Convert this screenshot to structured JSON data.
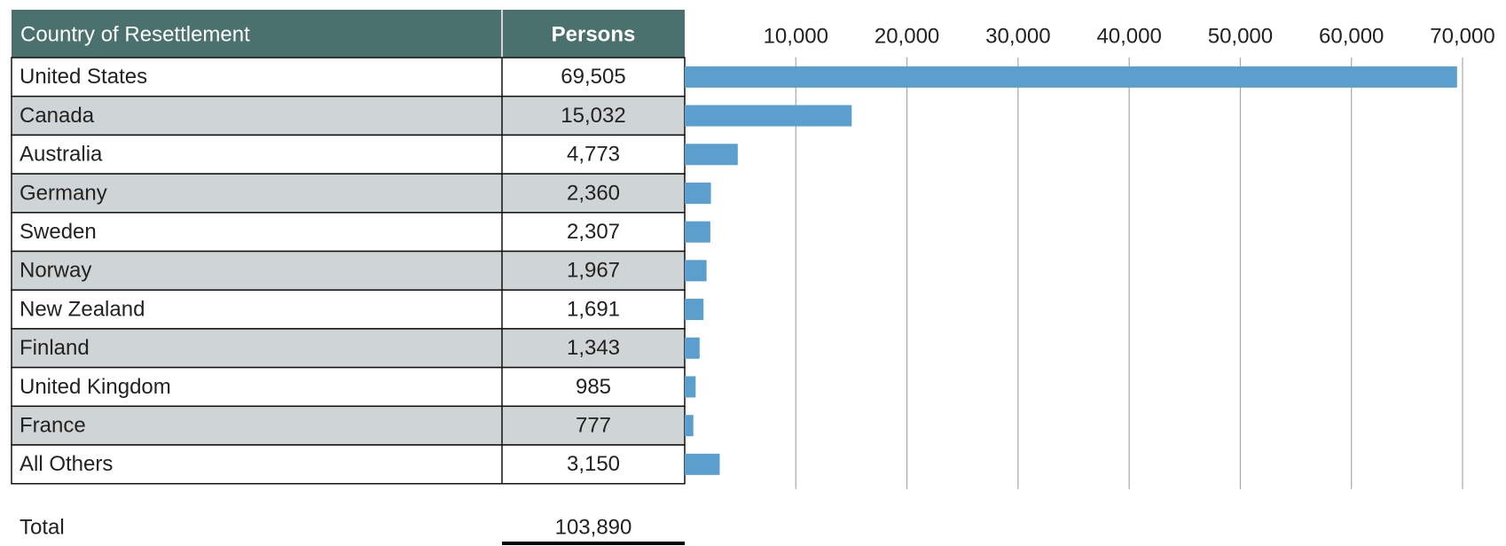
{
  "chart_data": {
    "type": "bar",
    "columns": [
      "Country of Resettlement",
      "Persons"
    ],
    "categories": [
      "United States",
      "Canada",
      "Australia",
      "Germany",
      "Sweden",
      "Norway",
      "New Zealand",
      "Finland",
      "United Kingdom",
      "France",
      "All Others"
    ],
    "values": [
      69505,
      15032,
      4773,
      2360,
      2307,
      1967,
      1691,
      1343,
      985,
      777,
      3150
    ],
    "value_labels": [
      "69,505",
      "15,032",
      "4,773",
      "2,360",
      "2,307",
      "1,967",
      "1,691",
      "1,343",
      "985",
      "777",
      "3,150"
    ],
    "total_label": "Total",
    "total": "103,890",
    "color": "#5b9fce",
    "header_color": "#4a716d",
    "shade_color": "#cfd4d4",
    "xlim": [
      0,
      70000
    ],
    "xticks": [
      {
        "value": 10000,
        "label": "10,000"
      },
      {
        "value": 20000,
        "label": "20,000"
      },
      {
        "value": 30000,
        "label": "30,000"
      },
      {
        "value": 40000,
        "label": "40,000"
      },
      {
        "value": 50000,
        "label": "50,000"
      },
      {
        "value": 60000,
        "label": "60,000"
      },
      {
        "value": 70000,
        "label": "70,000"
      }
    ],
    "grid": true
  }
}
